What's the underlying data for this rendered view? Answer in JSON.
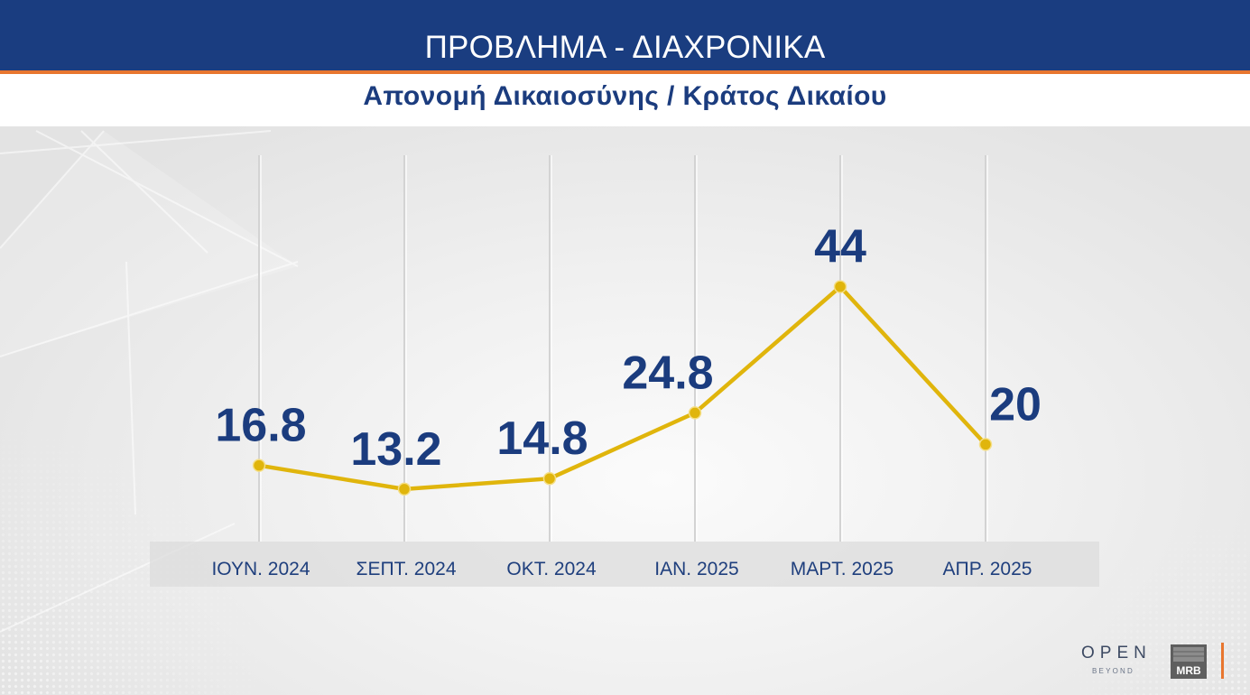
{
  "chart_data": {
    "type": "line",
    "title": "ΠΡΟΒΛΗΜΑ - ΔΙΑΧΡΟΝΙΚΑ",
    "subtitle": "Απονομή Δικαιοσύνης / Κράτος Δικαίου",
    "xlabel": "",
    "ylabel": "",
    "categories": [
      "ΙΟΥΝ. 2024",
      "ΣΕΠΤ. 2024",
      "ΟΚΤ. 2024",
      "ΙΑΝ. 2025",
      "ΜΑΡΤ. 2025",
      "ΑΠΡ. 2025"
    ],
    "series": [
      {
        "values": [
          16.8,
          13.2,
          14.8,
          24.8,
          44,
          20
        ],
        "color": "#e0b50c"
      }
    ],
    "data_labels": true,
    "ylim": [
      0,
      64
    ],
    "grid": {
      "vertical": true,
      "horizontal": false
    },
    "legend": "none"
  },
  "colors": {
    "header_bg": "#1a3d80",
    "accent": "#e8762f",
    "text_primary": "#1b3c7e",
    "line": "#e0b50c"
  },
  "logos": {
    "channel": "OPEN",
    "channel_tagline": "BEYOND",
    "pollster": "MRB"
  }
}
